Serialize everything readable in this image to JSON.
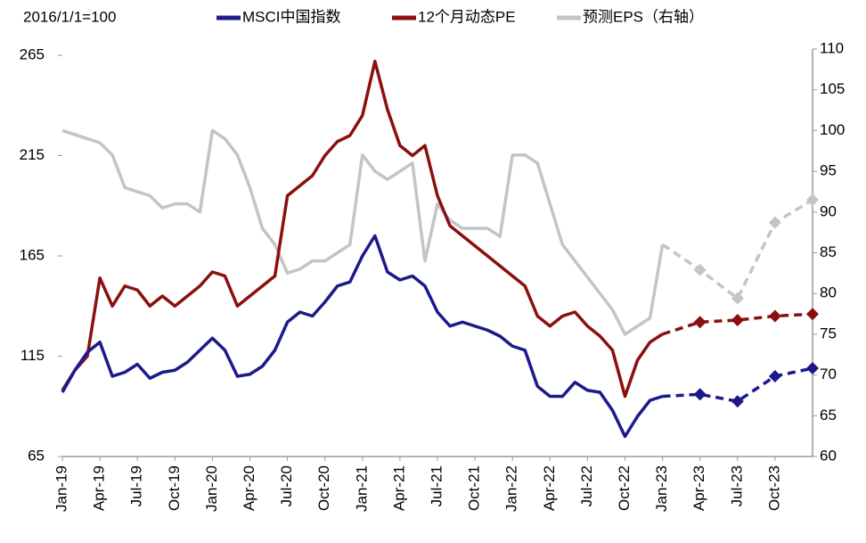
{
  "chart_data": {
    "type": "line",
    "note_label": "2016/1/1=100",
    "categories": [
      "Jan-19",
      null,
      null,
      "Apr-19",
      null,
      null,
      "Jul-19",
      null,
      null,
      "Oct-19",
      null,
      null,
      "Jan-20",
      null,
      null,
      "Apr-20",
      null,
      null,
      "Jul-20",
      null,
      null,
      "Oct-20",
      null,
      null,
      "Jan-21",
      null,
      null,
      "Apr-21",
      null,
      null,
      "Jul-21",
      null,
      null,
      "Oct-21",
      null,
      null,
      "Jan-22",
      null,
      null,
      "Apr-22",
      null,
      null,
      "Jul-22",
      null,
      null,
      "Oct-22",
      null,
      null,
      "Jan-23",
      null,
      null,
      "Apr-23",
      null,
      null,
      "Jul-23",
      null,
      null,
      "Oct-23",
      null,
      null,
      null
    ],
    "series": [
      {
        "name": "MSCI中国指数",
        "color": "#1c1a8a",
        "axis": "y",
        "values": [
          97,
          108,
          117,
          122,
          105,
          107,
          111,
          104,
          107,
          108,
          112,
          118,
          124,
          118,
          105,
          106,
          110,
          118,
          132,
          137,
          135,
          142,
          150,
          152,
          165,
          175,
          157,
          153,
          155,
          150,
          137,
          130,
          132,
          130,
          128,
          125,
          120,
          118,
          100,
          95,
          95,
          102,
          98,
          97,
          88,
          75,
          85,
          93,
          95,
          null,
          null,
          null,
          null,
          null,
          null,
          null,
          null,
          null,
          null,
          null,
          null
        ],
        "projection": [
          null,
          null,
          null,
          null,
          null,
          null,
          null,
          null,
          null,
          null,
          null,
          null,
          null,
          null,
          null,
          null,
          null,
          null,
          null,
          null,
          null,
          null,
          null,
          null,
          null,
          null,
          null,
          null,
          null,
          null,
          null,
          null,
          null,
          null,
          null,
          null,
          null,
          null,
          null,
          null,
          null,
          null,
          null,
          null,
          null,
          null,
          null,
          null,
          95,
          null,
          null,
          96,
          null,
          null,
          92.5,
          null,
          null,
          105,
          null,
          null,
          109
        ]
      },
      {
        "name": "12个月动态PE",
        "color": "#8b0f0f",
        "axis": "y",
        "values": [
          98,
          108,
          115,
          154,
          140,
          150,
          148,
          140,
          145,
          140,
          145,
          150,
          157,
          155,
          140,
          145,
          150,
          155,
          195,
          200,
          205,
          215,
          222,
          225,
          235,
          262,
          238,
          220,
          215,
          220,
          195,
          180,
          175,
          170,
          165,
          160,
          155,
          150,
          135,
          130,
          135,
          137,
          130,
          125,
          118,
          95,
          113,
          122,
          126,
          null,
          null,
          null,
          null,
          null,
          null,
          null,
          null,
          null,
          null,
          null,
          null
        ],
        "projection": [
          null,
          null,
          null,
          null,
          null,
          null,
          null,
          null,
          null,
          null,
          null,
          null,
          null,
          null,
          null,
          null,
          null,
          null,
          null,
          null,
          null,
          null,
          null,
          null,
          null,
          null,
          null,
          null,
          null,
          null,
          null,
          null,
          null,
          null,
          null,
          null,
          null,
          null,
          null,
          null,
          null,
          null,
          null,
          null,
          null,
          null,
          null,
          null,
          126,
          null,
          null,
          132,
          null,
          null,
          133,
          null,
          null,
          135,
          null,
          null,
          136
        ]
      },
      {
        "name": "预测EPS（右轴）",
        "color": "#c4c4c4",
        "axis": "y2",
        "values": [
          100,
          99.5,
          99,
          98.5,
          97,
          93,
          92.5,
          92,
          90.5,
          91,
          91,
          90,
          100,
          99,
          97,
          93,
          88,
          86,
          82.5,
          83,
          84,
          84,
          85,
          86,
          97,
          95,
          94,
          95,
          96,
          84,
          91,
          89,
          88,
          88,
          88,
          87,
          97,
          97,
          96,
          91,
          86,
          84,
          82,
          80,
          78,
          75,
          76,
          77,
          86,
          null,
          null,
          null,
          null,
          null,
          null,
          null,
          null,
          null,
          null,
          null,
          null
        ],
        "projection": [
          null,
          null,
          null,
          null,
          null,
          null,
          null,
          null,
          null,
          null,
          null,
          null,
          null,
          null,
          null,
          null,
          null,
          null,
          null,
          null,
          null,
          null,
          null,
          null,
          null,
          null,
          null,
          null,
          null,
          null,
          null,
          null,
          null,
          null,
          null,
          null,
          null,
          null,
          null,
          null,
          null,
          null,
          null,
          null,
          null,
          null,
          null,
          null,
          86,
          null,
          null,
          82.9,
          null,
          null,
          79.4,
          null,
          null,
          88.7,
          null,
          null,
          91.5
        ]
      }
    ],
    "ylim": [
      65,
      265
    ],
    "yticks": [
      65,
      115,
      165,
      215,
      265
    ],
    "y2lim": [
      60,
      110
    ],
    "y2ticks": [
      60,
      65,
      70,
      75,
      80,
      85,
      90,
      95,
      100,
      105,
      110
    ],
    "grid": false
  }
}
